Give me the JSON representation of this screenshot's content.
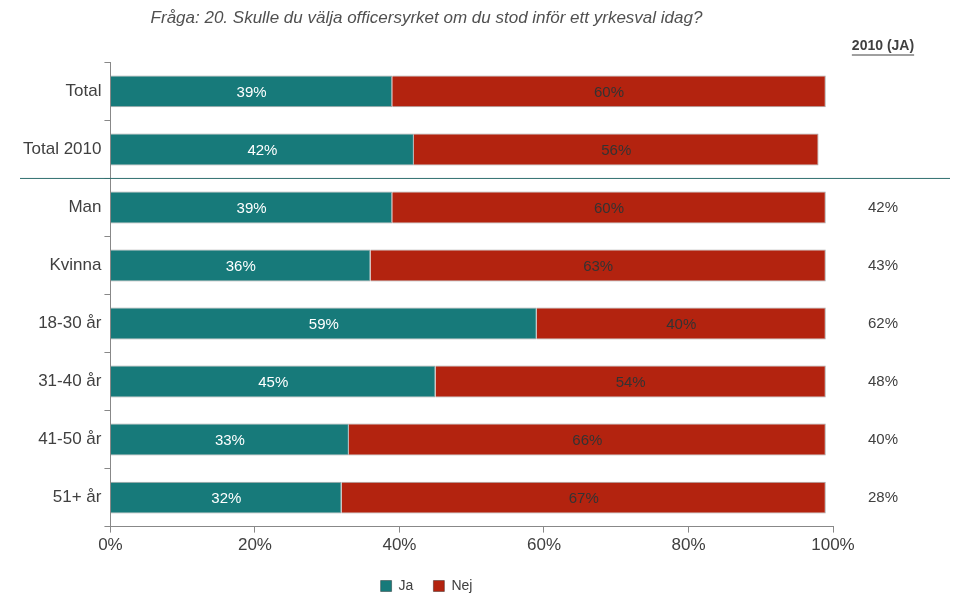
{
  "chart_data": {
    "type": "bar",
    "title": "Fråga: 20. Skulle du välja officersyrket om du stod inför ett yrkesval idag?",
    "orientation": "horizontal",
    "stacked": true,
    "data_labels": true,
    "grid": false,
    "legend": "bottom",
    "categories": [
      "Total",
      "Total 2010",
      "Man",
      "Kvinna",
      "18-30 år",
      "31-40 år",
      "41-50 år",
      "51+ år"
    ],
    "series": [
      {
        "name": "Ja",
        "color": "#177a7a",
        "values": [
          39,
          42,
          39,
          36,
          59,
          45,
          33,
          32
        ],
        "value_labels": [
          "39%",
          "42%",
          "39%",
          "36%",
          "59%",
          "45%",
          "33%",
          "32%"
        ]
      },
      {
        "name": "Nej",
        "color": "#b3230f",
        "values": [
          60,
          56,
          60,
          63,
          40,
          54,
          66,
          67
        ],
        "value_labels": [
          "60%",
          "56%",
          "60%",
          "63%",
          "40%",
          "54%",
          "66%",
          "67%"
        ]
      }
    ],
    "xlim": [
      0,
      100
    ],
    "xticks": [
      {
        "value": 0,
        "label": "0%"
      },
      {
        "value": 20,
        "label": "20%"
      },
      {
        "value": 40,
        "label": "40%"
      },
      {
        "value": 60,
        "label": "60%"
      },
      {
        "value": 80,
        "label": "80%"
      },
      {
        "value": 100,
        "label": "100%"
      }
    ],
    "annotations": {
      "header": "2010 (JA)",
      "values": [
        null,
        null,
        42,
        43,
        62,
        48,
        40,
        28
      ],
      "value_labels": [
        null,
        null,
        "42%",
        "43%",
        "62%",
        "48%",
        "40%",
        "28%"
      ]
    }
  }
}
